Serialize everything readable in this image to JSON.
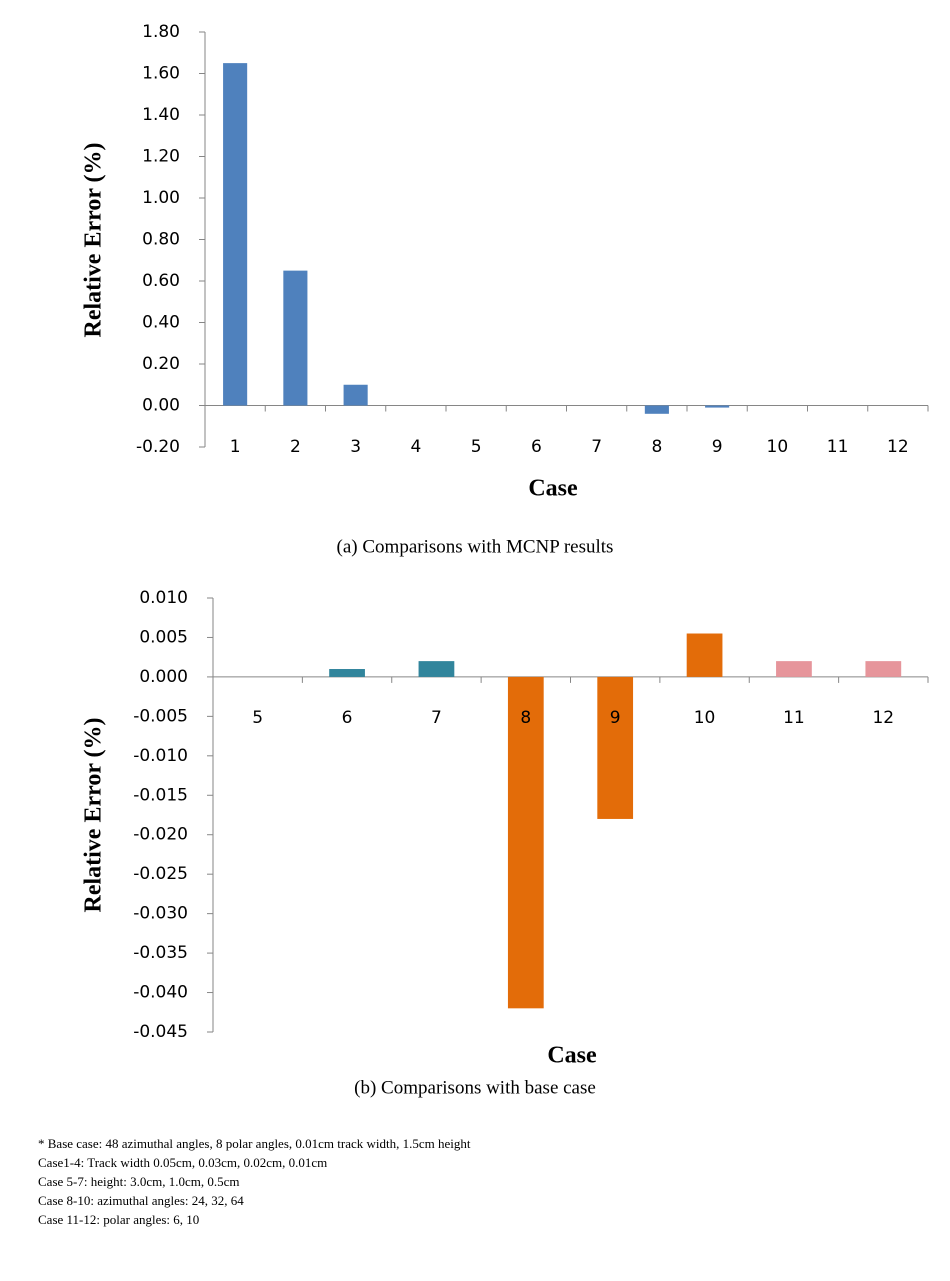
{
  "chart_data": [
    {
      "type": "bar",
      "caption": "(a)  Comparisons with MCNP results",
      "x_label": "Case",
      "y_label": "Relative Error (%)",
      "categories": [
        "1",
        "2",
        "3",
        "4",
        "5",
        "6",
        "7",
        "8",
        "9",
        "10",
        "11",
        "12"
      ],
      "values": [
        1.65,
        0.65,
        0.1,
        0,
        0,
        0,
        0,
        -0.04,
        -0.01,
        0,
        0,
        0
      ],
      "colors": [
        "#4f81bd",
        "#4f81bd",
        "#4f81bd",
        "#4f81bd",
        "#4f81bd",
        "#4f81bd",
        "#4f81bd",
        "#4f81bd",
        "#4f81bd",
        "#4f81bd",
        "#4f81bd",
        "#4f81bd"
      ],
      "ylim": [
        -0.2,
        1.8
      ],
      "yticks": [
        {
          "value": -0.2,
          "label": "-0.20"
        },
        {
          "value": 0,
          "label": "0.00"
        },
        {
          "value": 0.2,
          "label": "0.20"
        },
        {
          "value": 0.4,
          "label": "0.40"
        },
        {
          "value": 0.6,
          "label": "0.60"
        },
        {
          "value": 0.8,
          "label": "0.80"
        },
        {
          "value": 1.0,
          "label": "1.00"
        },
        {
          "value": 1.2,
          "label": "1.20"
        },
        {
          "value": 1.4,
          "label": "1.40"
        },
        {
          "value": 1.6,
          "label": "1.60"
        },
        {
          "value": 1.8,
          "label": "1.80"
        }
      ]
    },
    {
      "type": "bar",
      "caption": "(b) Comparisons with base case",
      "x_label": "Case",
      "y_label": "Relative Error (%)",
      "categories": [
        "5",
        "6",
        "7",
        "8",
        "9",
        "10",
        "11",
        "12"
      ],
      "values": [
        0,
        0.001,
        0.002,
        -0.042,
        -0.018,
        0.0055,
        0.002,
        0.002
      ],
      "colors": [
        "#31859c",
        "#31859c",
        "#31859c",
        "#e36c09",
        "#e36c09",
        "#e36c09",
        "#e6959b",
        "#e6959b"
      ],
      "ylim": [
        -0.045,
        0.01
      ],
      "yticks": [
        {
          "value": -0.045,
          "label": "-0.045"
        },
        {
          "value": -0.04,
          "label": "-0.040"
        },
        {
          "value": -0.035,
          "label": "-0.035"
        },
        {
          "value": -0.03,
          "label": "-0.030"
        },
        {
          "value": -0.025,
          "label": "-0.025"
        },
        {
          "value": -0.02,
          "label": "-0.020"
        },
        {
          "value": -0.015,
          "label": "-0.015"
        },
        {
          "value": -0.01,
          "label": "-0.010"
        },
        {
          "value": -0.005,
          "label": "-0.005"
        },
        {
          "value": 0,
          "label": "0.000"
        },
        {
          "value": 0.005,
          "label": "0.005"
        },
        {
          "value": 0.01,
          "label": "0.010"
        }
      ]
    }
  ],
  "notes": [
    "* Base case: 48 azimuthal angles, 8 polar angles, 0.01cm track width, 1.5cm height",
    "Case1-4: Track width 0.05cm, 0.03cm, 0.02cm, 0.01cm",
    "Case 5-7: height: 3.0cm, 1.0cm, 0.5cm",
    "Case 8-10: azimuthal angles: 24, 32, 64",
    "Case 11-12: polar angles: 6, 10"
  ]
}
